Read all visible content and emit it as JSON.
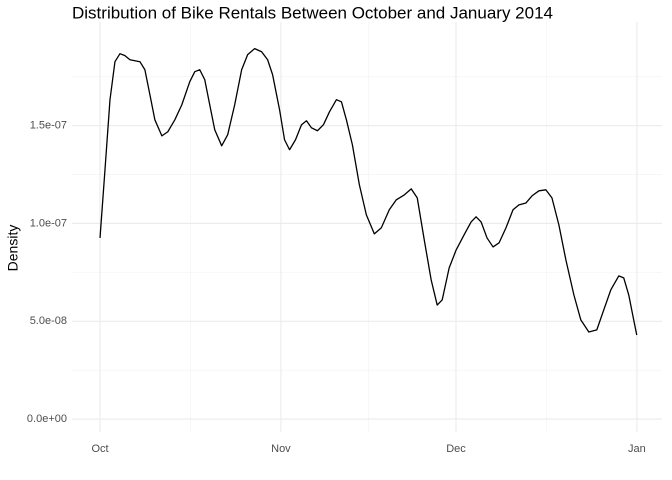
{
  "chart_data": {
    "type": "line",
    "title": "Distribution of Bike Rentals Between October and January 2014",
    "y_label": "Density",
    "x": [
      0,
      0.85,
      1.71,
      2.56,
      3.42,
      4.27,
      5.13,
      6.84,
      7.69,
      8.55,
      9.4,
      10.6,
      11.62,
      12.82,
      14.02,
      15.38,
      16.24,
      17.09,
      17.95,
      18.8,
      19.66,
      20.85,
      21.88,
      23.08,
      24.27,
      25.3,
      26.5,
      27.69,
      28.72,
      29.57,
      30.77,
      31.62,
      32.48,
      33.5,
      34.53,
      35.38,
      36.24,
      37.26,
      38.29,
      39.32,
      40.51,
      41.37,
      42.22,
      43.25,
      44.44,
      45.64,
      47.01,
      48.21,
      49.57,
      50.77,
      52.14,
      53.33,
      54.36,
      55.56,
      56.75,
      57.78,
      58.63,
      59.83,
      61.03,
      62.39,
      63.59,
      64.44,
      65.3,
      66.32,
      67.35,
      68.38,
      69.57,
      70.77,
      71.79,
      72.99,
      74.02,
      75.21,
      76.41,
      77.44,
      78.63,
      79.83,
      81.2,
      82.39,
      83.76,
      85.13,
      86.32,
      87.52,
      88.89,
      89.74,
      90.6,
      91.45,
      91.97
    ],
    "series": [
      {
        "color": "#000000",
        "values": [
          9.26e-08,
          1.274e-07,
          1.633e-07,
          1.827e-07,
          1.868e-07,
          1.858e-07,
          1.837e-07,
          1.827e-07,
          1.786e-07,
          1.658e-07,
          1.53e-07,
          1.448e-07,
          1.469e-07,
          1.53e-07,
          1.607e-07,
          1.725e-07,
          1.776e-07,
          1.786e-07,
          1.735e-07,
          1.607e-07,
          1.479e-07,
          1.397e-07,
          1.454e-07,
          1.607e-07,
          1.786e-07,
          1.863e-07,
          1.894e-07,
          1.878e-07,
          1.837e-07,
          1.761e-07,
          1.581e-07,
          1.428e-07,
          1.377e-07,
          1.428e-07,
          1.505e-07,
          1.525e-07,
          1.489e-07,
          1.474e-07,
          1.505e-07,
          1.571e-07,
          1.633e-07,
          1.622e-07,
          1.53e-07,
          1.402e-07,
          1.198e-07,
          1.044e-07,
          9.47e-08,
          9.78e-08,
          1.07e-07,
          1.121e-07,
          1.146e-07,
          1.177e-07,
          1.131e-07,
          9.16e-08,
          7.11e-08,
          5.83e-08,
          6.09e-08,
          7.73e-08,
          8.65e-08,
          9.42e-08,
          1.008e-07,
          1.034e-07,
          1.008e-07,
          9.26e-08,
          8.8e-08,
          9.01e-08,
          9.78e-08,
          1.07e-07,
          1.095e-07,
          1.105e-07,
          1.141e-07,
          1.167e-07,
          1.172e-07,
          1.131e-07,
          9.93e-08,
          8.14e-08,
          6.35e-08,
          5.07e-08,
          4.45e-08,
          4.56e-08,
          5.58e-08,
          6.6e-08,
          7.32e-08,
          7.22e-08,
          6.35e-08,
          5.07e-08,
          4.3e-08
        ]
      }
    ],
    "xlim": [
      -4.8,
      96.3
    ],
    "xticks": [
      {
        "value": 0,
        "label": "Oct"
      },
      {
        "value": 31,
        "label": "Nov"
      },
      {
        "value": 61,
        "label": "Dec"
      },
      {
        "value": 92,
        "label": "Jan"
      }
    ],
    "xminor": [
      15.5,
      46,
      76.5
    ],
    "ylim": [
      -6.6e-09,
      2.03e-07
    ],
    "yticks": [
      {
        "value": 0,
        "label": "0.0e+00"
      },
      {
        "value": 5e-08,
        "label": "5.0e-08"
      },
      {
        "value": 1e-07,
        "label": "1.0e-07"
      },
      {
        "value": 1.5e-07,
        "label": "1.5e-07"
      }
    ],
    "yminor": [
      2.5e-08,
      7.5e-08,
      1.25e-07,
      1.75e-07
    ],
    "grid": true
  }
}
